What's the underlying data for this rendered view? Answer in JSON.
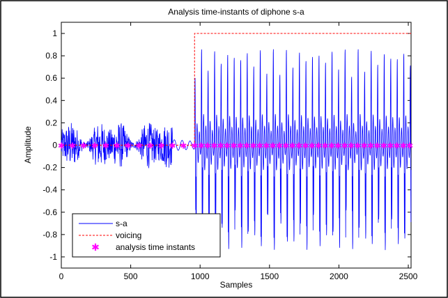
{
  "chart_data": {
    "type": "line",
    "title": "Analysis time-instants of diphone s-a",
    "xlabel": "Samples",
    "ylabel": "Amplitude",
    "xlim": [
      0,
      2520
    ],
    "ylim": [
      -1.1,
      1.1
    ],
    "xticks": [
      0,
      500,
      1000,
      1500,
      2000,
      2500
    ],
    "xtick_labels": [
      "0",
      "500",
      "1000",
      "1500",
      "2000",
      "2500"
    ],
    "yticks": [
      1,
      0.8,
      0.6,
      0.4,
      0.2,
      0,
      -0.2,
      -0.4,
      -0.6,
      -0.8,
      -1
    ],
    "ytick_labels": [
      "1",
      "0.8",
      "0.6",
      "0.4",
      "0.2",
      "0",
      "-0.2",
      "-0.4",
      "-0.6",
      "-0.8",
      "-1"
    ],
    "grid": false,
    "legend_position": "bottom-left",
    "colors": {
      "signal": "#0000ff",
      "voicing": "#ff0000",
      "instants": "#ff00ff",
      "axes": "#000000",
      "frame": "#000000"
    },
    "series": [
      {
        "name": "s-a",
        "style": "solid",
        "description_of_shape": "unvoiced noise amplitude ~0.2 from 0 to ~800, small decay to ~960, then voiced periodic oscillation amplitude up to ~0.9",
        "unvoiced_segment": {
          "x_start": 0,
          "x_end": 800,
          "amplitude": 0.2
        },
        "transition_segment": {
          "x_start": 800,
          "x_end": 960,
          "amplitude": 0.05
        },
        "voiced_segment": {
          "x_start": 960,
          "x_end": 2520,
          "period": 47,
          "peak_amplitude": 0.87,
          "trough_amplitude": -0.95
        }
      },
      {
        "name": "voicing",
        "style": "dashed",
        "x": [
          0,
          960,
          960,
          2520
        ],
        "y": [
          0,
          0,
          1,
          1
        ]
      },
      {
        "name": "analysis time instants",
        "style": "marker",
        "marker": "*",
        "x": [
          0,
          80,
          160,
          240,
          320,
          400,
          480,
          560,
          640,
          720,
          800,
          880,
          960,
          1007,
          1054,
          1101,
          1148,
          1195,
          1242,
          1289,
          1336,
          1383,
          1430,
          1477,
          1524,
          1571,
          1618,
          1665,
          1712,
          1759,
          1806,
          1853,
          1900,
          1947,
          1994,
          2041,
          2088,
          2135,
          2182,
          2229,
          2276,
          2323,
          2370,
          2417,
          2464,
          2511
        ],
        "y_constant": 0
      }
    ]
  }
}
